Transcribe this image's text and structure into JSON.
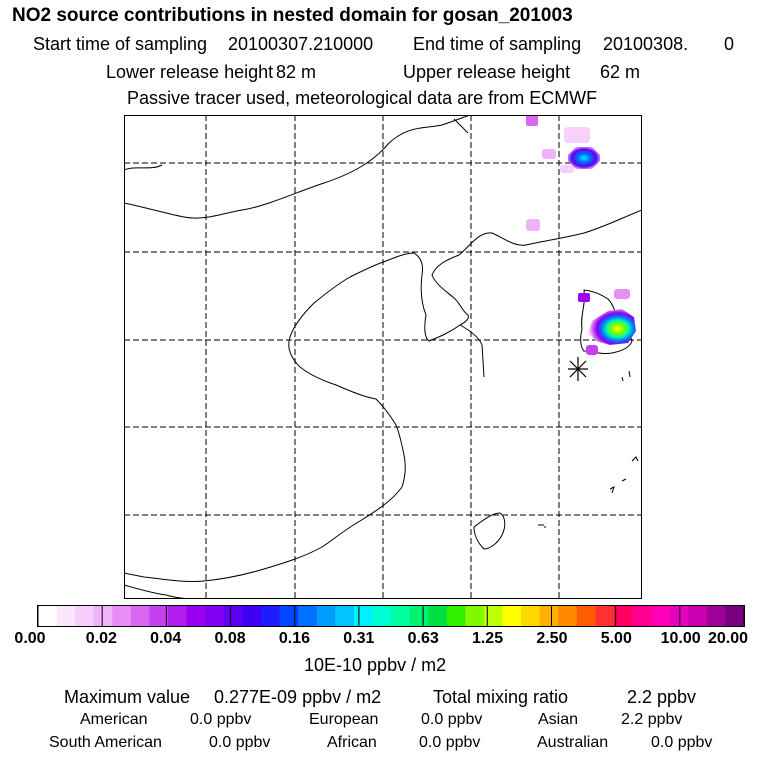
{
  "header": {
    "title": "NO2 source contributions in nested domain for gosan_201003",
    "start_label": "Start time of sampling",
    "start_value": "20100307.210000",
    "end_label": "End time of sampling",
    "end_value": "20100308.",
    "end_extra": "0",
    "lower_label": "Lower release height",
    "lower_value": "82 m",
    "upper_label": "Upper release height",
    "upper_value": "62 m",
    "passive_note": "Passive tracer used, meteorological data are from ECMWF"
  },
  "map": {
    "receptor_marker": "asterisk-icon",
    "grid": "dashed",
    "plume_colors": [
      "#ffd0ff",
      "#ff80ff",
      "#c000ff",
      "#0080ff",
      "#00ffa0",
      "#ffff00"
    ]
  },
  "colorbar": {
    "colors": [
      "#ffffff",
      "#fbe6fd",
      "#f7cdfb",
      "#f0b2f8",
      "#e78df4",
      "#d867f2",
      "#c640f0",
      "#b21df0",
      "#9b00f0",
      "#7f00f0",
      "#5f00f0",
      "#3d00f5",
      "#1c1cff",
      "#0046ff",
      "#0070ff",
      "#009bff",
      "#00c5ff",
      "#00f0ff",
      "#00ffd0",
      "#00ffa0",
      "#00f070",
      "#00e040",
      "#30f000",
      "#80f800",
      "#c0ff00",
      "#ffff00",
      "#ffd800",
      "#ffb000",
      "#ff8800",
      "#ff5c00",
      "#ff3030",
      "#ff0060",
      "#ff0090",
      "#ff00b8",
      "#e600c0",
      "#c800b0",
      "#a0009a",
      "#780080"
    ],
    "ticks": [
      "0.00",
      "0.02",
      "0.04",
      "0.08",
      "0.16",
      "0.31",
      "0.63",
      "1.25",
      "2.50",
      "5.00",
      "10.00",
      "20.00"
    ],
    "units": "10E-10 ppbv / m2"
  },
  "summary": {
    "max_label": "Maximum value",
    "max_value": "0.277E-09 ppbv / m2",
    "total_label": "Total mixing ratio",
    "total_value": "2.2 ppbv",
    "regions": [
      {
        "name": "American",
        "value": "0.0 ppbv"
      },
      {
        "name": "European",
        "value": "0.0 ppbv"
      },
      {
        "name": "Asian",
        "value": "2.2 ppbv"
      },
      {
        "name": "South American",
        "value": "0.0 ppbv"
      },
      {
        "name": "African",
        "value": "0.0 ppbv"
      },
      {
        "name": "Australian",
        "value": "0.0 ppbv"
      }
    ]
  }
}
